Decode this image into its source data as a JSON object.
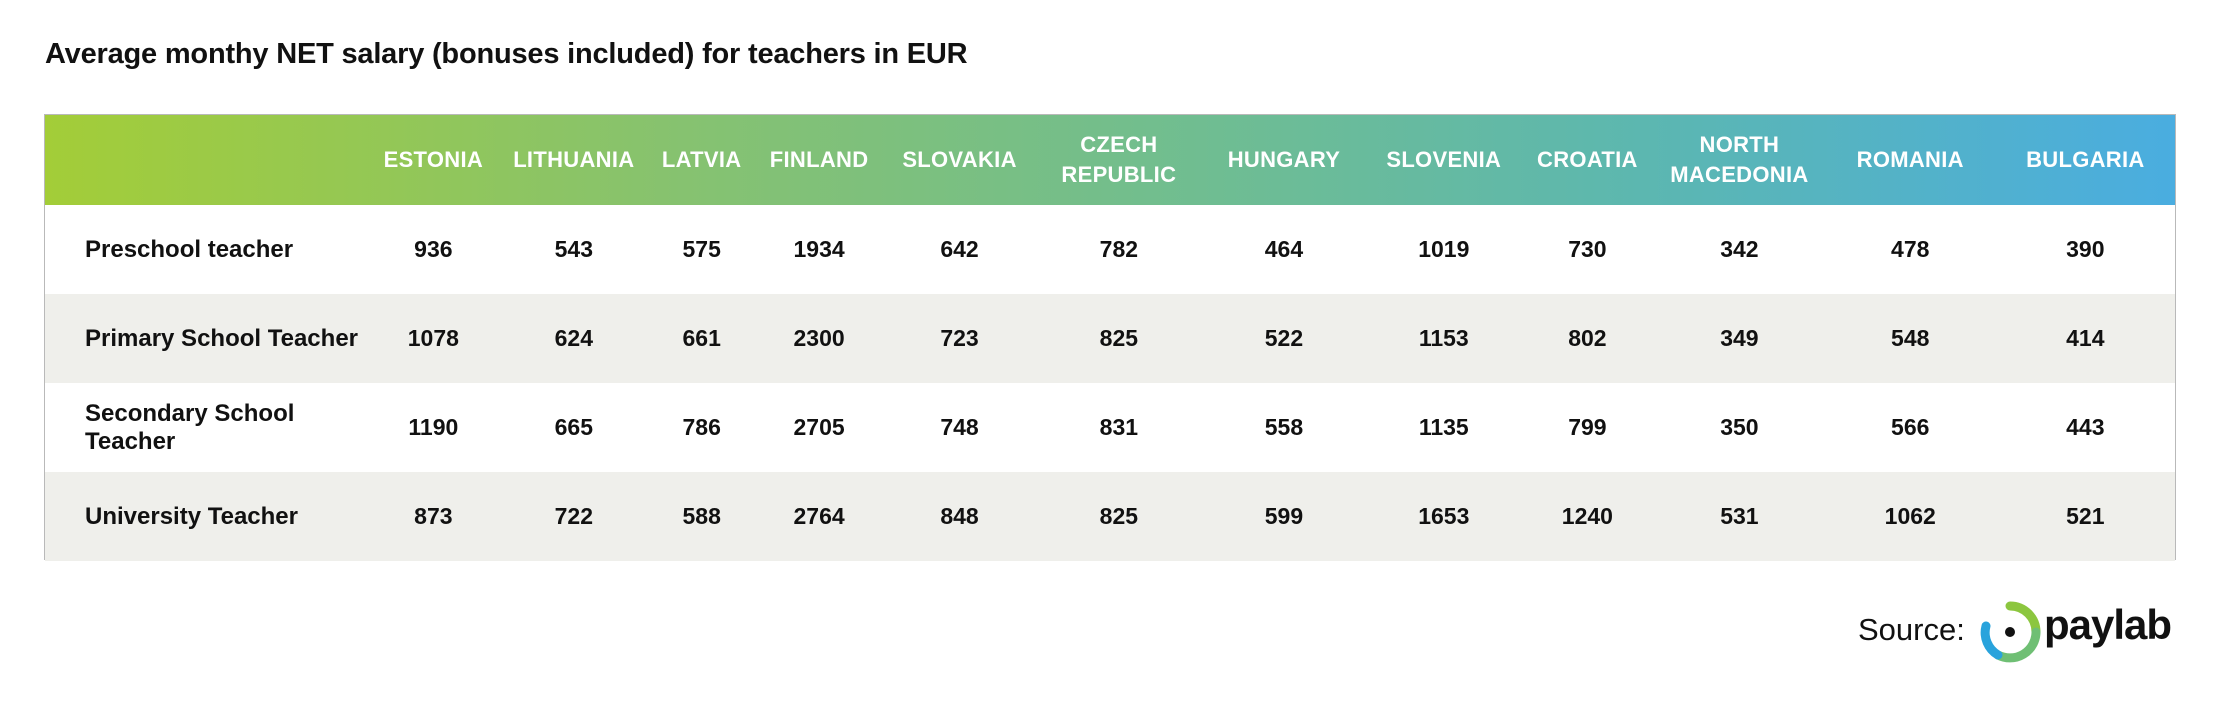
{
  "title": "Average monthy NET salary (bonuses included) for teachers in EUR",
  "source_label": "Source:",
  "brand_name": "paylab",
  "colors": {
    "header_gradient_start": "#a3cd38",
    "header_gradient_end": "#4aade0",
    "row_alt": "#efefeb",
    "logo_green": "#8cc63f",
    "logo_blue": "#29a3dc"
  },
  "chart_data": {
    "type": "table",
    "title": "Average monthy NET salary (bonuses included) for teachers in EUR",
    "columns": [
      "ESTONIA",
      "LITHUANIA",
      "LATVIA",
      "FINLAND",
      "SLOVAKIA",
      "CZECH REPUBLIC",
      "HUNGARY",
      "SLOVENIA",
      "CROATIA",
      "NORTH MACEDONIA",
      "ROMANIA",
      "BULGARIA"
    ],
    "rows": [
      {
        "label": "Preschool teacher",
        "values": [
          936,
          543,
          575,
          1934,
          642,
          782,
          464,
          1019,
          730,
          342,
          478,
          390
        ]
      },
      {
        "label": "Primary School Teacher",
        "values": [
          1078,
          624,
          661,
          2300,
          723,
          825,
          522,
          1153,
          802,
          349,
          548,
          414
        ]
      },
      {
        "label": "Secondary School Teacher",
        "values": [
          1190,
          665,
          786,
          2705,
          748,
          831,
          558,
          1135,
          799,
          350,
          566,
          443
        ]
      },
      {
        "label": "University Teacher",
        "values": [
          873,
          722,
          588,
          2764,
          848,
          825,
          599,
          1653,
          1240,
          531,
          1062,
          521
        ]
      }
    ]
  }
}
